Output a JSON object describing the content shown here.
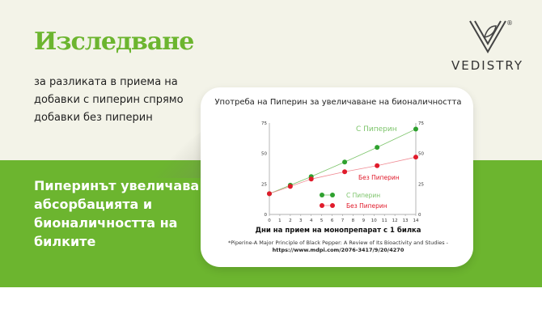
{
  "header": {
    "title": "Изследване",
    "subtitle": "за разликата в приема на добавки с пиперин спрямо добавки без пиперин"
  },
  "logo": {
    "brand": "VEDISTRY",
    "mark": "V",
    "registered": "®"
  },
  "claim": "Пиперинът увеличава абсорбацията и бионаличността на билките",
  "colors": {
    "accent": "#6cb52f",
    "with": "#2fa12f",
    "without": "#e01b2b"
  },
  "chart_data": {
    "type": "line",
    "title": "Употреба на Пиперин за увеличаване на бионаличността",
    "xlabel": "Дни на прием на монопрепарат с 1 билка",
    "ylabel": "",
    "xlim": [
      0,
      14
    ],
    "ylim": [
      0,
      75
    ],
    "xticks": [
      "0",
      "1",
      "2",
      "3",
      "4",
      "5",
      "6",
      "7",
      "8",
      "9",
      "10",
      "11",
      "12",
      "13",
      "14"
    ],
    "yticks": [
      "0",
      "25",
      "50",
      "75"
    ],
    "grid": false,
    "legend": "center",
    "series": [
      {
        "name": "С Пиперин",
        "color": "#2fa12f",
        "x": [
          0,
          2,
          4,
          7.2,
          10.3,
          14
        ],
        "y": [
          17,
          24,
          31,
          43,
          55,
          70
        ]
      },
      {
        "name": "Без Пиперин",
        "color": "#e01b2b",
        "x": [
          0,
          2,
          4,
          7.2,
          10.3,
          14
        ],
        "y": [
          17,
          23,
          29,
          35,
          40,
          47
        ]
      }
    ],
    "source": "*Piperine-A Major Principle of Black Pepper: A Review of Its Bioactivity and Studies -",
    "source_url": "https://www.mdpi.com/2076-3417/9/20/4270"
  }
}
